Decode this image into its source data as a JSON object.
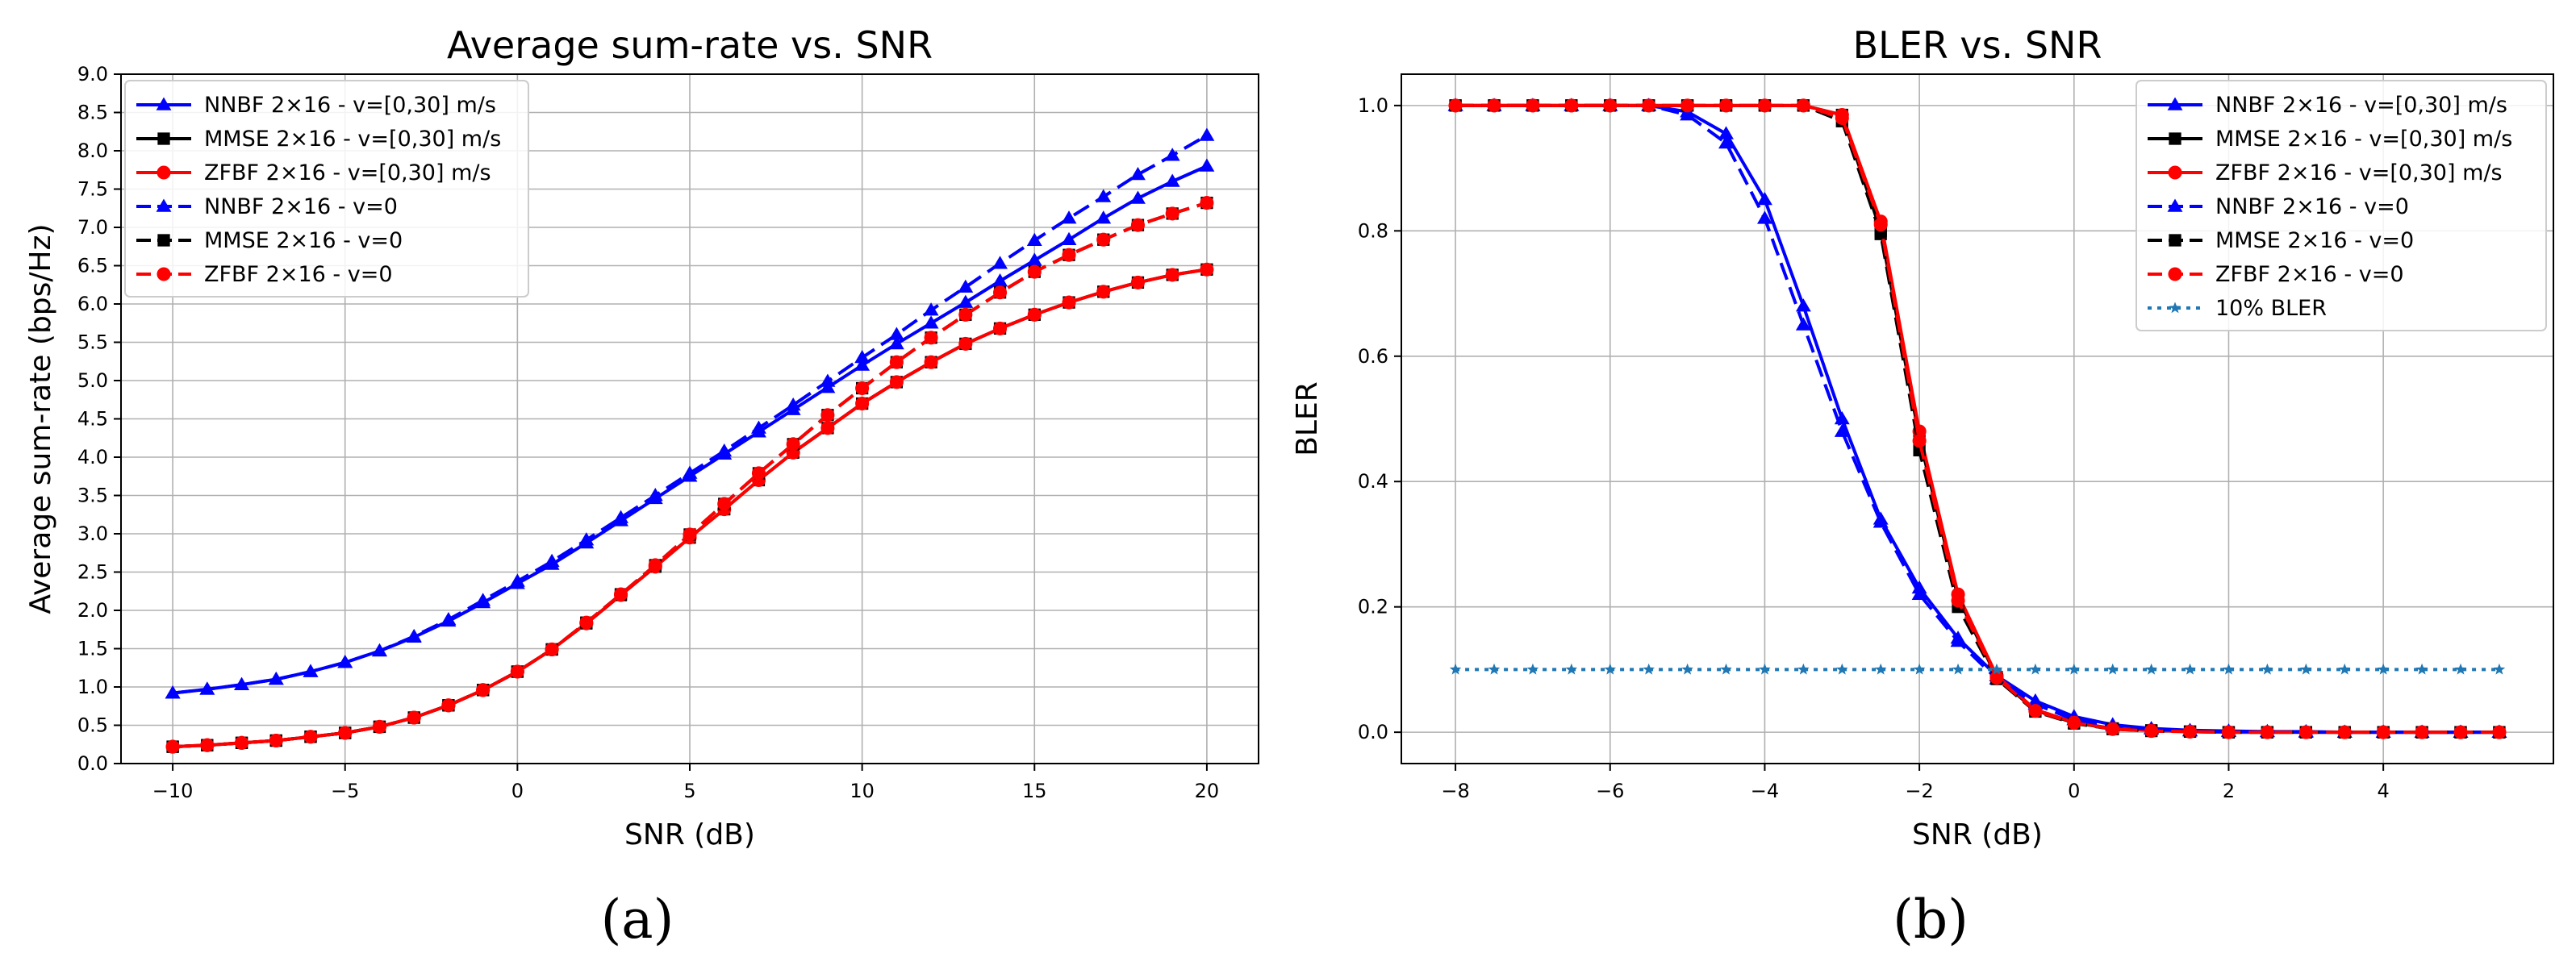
{
  "chart_data": [
    {
      "type": "line",
      "title": "Average sum-rate vs. SNR",
      "xlabel": "SNR (dB)",
      "ylabel": "Average sum-rate (bps/Hz)",
      "xlim": [
        -11.5,
        21.5
      ],
      "ylim": [
        0,
        9
      ],
      "xticks": [
        -10,
        -5,
        0,
        5,
        10,
        15,
        20
      ],
      "xtick_labels": [
        "−10",
        "−5",
        "0",
        "5",
        "10",
        "15",
        "20"
      ],
      "yticks": [
        0,
        0.5,
        1,
        1.5,
        2,
        2.5,
        3,
        3.5,
        4,
        4.5,
        5,
        5.5,
        6,
        6.5,
        7,
        7.5,
        8,
        8.5,
        9
      ],
      "ytick_labels": [
        "0.0",
        "0.5",
        "1.0",
        "1.5",
        "2.0",
        "2.5",
        "3.0",
        "3.5",
        "4.0",
        "4.5",
        "5.0",
        "5.5",
        "6.0",
        "6.5",
        "7.0",
        "7.5",
        "8.0",
        "8.5",
        "9.0"
      ],
      "grid": true,
      "legend_position": "upper-left",
      "panel_label": "(a)",
      "x": [
        -10,
        -9,
        -8,
        -7,
        -6,
        -5,
        -4,
        -3,
        -2,
        -1,
        0,
        1,
        2,
        3,
        4,
        5,
        6,
        7,
        8,
        9,
        10,
        11,
        12,
        13,
        14,
        15,
        16,
        17,
        18,
        19,
        20
      ],
      "series": [
        {
          "name": "NNBF 2×16 -  v=[0,30] m/s",
          "color": "#0000ff",
          "linestyle": "solid",
          "marker": "triangle",
          "values": [
            0.92,
            0.97,
            1.03,
            1.1,
            1.2,
            1.32,
            1.47,
            1.65,
            1.86,
            2.1,
            2.35,
            2.6,
            2.88,
            3.17,
            3.46,
            3.75,
            4.04,
            4.33,
            4.62,
            4.91,
            5.2,
            5.48,
            5.75,
            6.02,
            6.3,
            6.57,
            6.84,
            7.12,
            7.38,
            7.6,
            7.8
          ]
        },
        {
          "name": "MMSE 2×16 -  v=[0,30] m/s",
          "color": "#000000",
          "linestyle": "solid",
          "marker": "square",
          "values": [
            0.22,
            0.24,
            0.27,
            0.3,
            0.35,
            0.4,
            0.48,
            0.6,
            0.76,
            0.96,
            1.2,
            1.49,
            1.83,
            2.2,
            2.57,
            2.95,
            3.32,
            3.7,
            4.06,
            4.38,
            4.7,
            4.98,
            5.24,
            5.48,
            5.68,
            5.86,
            6.02,
            6.16,
            6.28,
            6.38,
            6.45
          ]
        },
        {
          "name": "ZFBF 2×16 -  v=[0,30] m/s",
          "color": "#ff0000",
          "linestyle": "solid",
          "marker": "circle",
          "values": [
            0.22,
            0.24,
            0.27,
            0.3,
            0.35,
            0.4,
            0.48,
            0.6,
            0.76,
            0.96,
            1.2,
            1.49,
            1.83,
            2.2,
            2.57,
            2.95,
            3.32,
            3.7,
            4.06,
            4.38,
            4.7,
            4.98,
            5.24,
            5.48,
            5.68,
            5.86,
            6.02,
            6.16,
            6.28,
            6.38,
            6.45
          ]
        },
        {
          "name": "NNBF 2×16 - v=0",
          "color": "#0000ff",
          "linestyle": "dashed",
          "marker": "triangle",
          "values": [
            0.92,
            0.97,
            1.03,
            1.1,
            1.2,
            1.32,
            1.47,
            1.66,
            1.88,
            2.13,
            2.38,
            2.64,
            2.92,
            3.21,
            3.5,
            3.79,
            4.08,
            4.38,
            4.68,
            4.99,
            5.3,
            5.6,
            5.92,
            6.22,
            6.53,
            6.83,
            7.12,
            7.4,
            7.69,
            7.94,
            8.2
          ]
        },
        {
          "name": "MMSE 2×16 - v=0",
          "color": "#000000",
          "linestyle": "dashed",
          "marker": "square",
          "values": [
            0.22,
            0.24,
            0.27,
            0.3,
            0.35,
            0.4,
            0.48,
            0.6,
            0.76,
            0.96,
            1.2,
            1.49,
            1.84,
            2.21,
            2.59,
            2.99,
            3.39,
            3.79,
            4.17,
            4.55,
            4.9,
            5.24,
            5.56,
            5.86,
            6.15,
            6.42,
            6.64,
            6.84,
            7.03,
            7.18,
            7.32
          ]
        },
        {
          "name": "ZFBF 2×16 - v=0",
          "color": "#ff0000",
          "linestyle": "dashed",
          "marker": "circle",
          "values": [
            0.22,
            0.24,
            0.27,
            0.3,
            0.35,
            0.4,
            0.48,
            0.6,
            0.76,
            0.96,
            1.2,
            1.49,
            1.84,
            2.21,
            2.59,
            2.99,
            3.39,
            3.79,
            4.17,
            4.55,
            4.9,
            5.24,
            5.56,
            5.86,
            6.15,
            6.42,
            6.64,
            6.84,
            7.03,
            7.18,
            7.32
          ]
        }
      ]
    },
    {
      "type": "line",
      "title": "BLER vs. SNR",
      "xlabel": "SNR (dB)",
      "ylabel": "BLER",
      "xlim": [
        -8.7,
        6.2
      ],
      "ylim": [
        -0.05,
        1.05
      ],
      "xticks": [
        -8,
        -6,
        -4,
        -2,
        0,
        2,
        4
      ],
      "xtick_labels": [
        "−8",
        "−6",
        "−4",
        "−2",
        "0",
        "2",
        "4"
      ],
      "yticks": [
        0,
        0.2,
        0.4,
        0.6,
        0.8,
        1.0
      ],
      "ytick_labels": [
        "0.0",
        "0.2",
        "0.4",
        "0.6",
        "0.8",
        "1.0"
      ],
      "grid": true,
      "legend_position": "upper-right",
      "panel_label": "(b)",
      "x": [
        -8,
        -7.5,
        -7,
        -6.5,
        -6,
        -5.5,
        -5,
        -4.5,
        -4,
        -3.5,
        -3,
        -2.5,
        -2,
        -1.5,
        -1,
        -0.5,
        0,
        0.5,
        1,
        1.5,
        2,
        2.5,
        3,
        3.5,
        4,
        4.5,
        5,
        5.5
      ],
      "series": [
        {
          "name": "NNBF 2×16 - v=[0,30] m/s",
          "color": "#0000ff",
          "linestyle": "solid",
          "marker": "triangle",
          "values": [
            1.0,
            1.0,
            1.0,
            1.0,
            1.0,
            1.0,
            0.99,
            0.955,
            0.85,
            0.68,
            0.5,
            0.34,
            0.23,
            0.15,
            0.09,
            0.05,
            0.025,
            0.012,
            0.006,
            0.003,
            0.002,
            0.001,
            0.001,
            0,
            0,
            0,
            0,
            0
          ]
        },
        {
          "name": "MMSE 2×16 - v=[0,30] m/s",
          "color": "#000000",
          "linestyle": "solid",
          "marker": "square",
          "values": [
            1.0,
            1.0,
            1.0,
            1.0,
            1.0,
            1.0,
            1.0,
            1.0,
            1.0,
            1.0,
            0.985,
            0.8,
            0.47,
            0.215,
            0.088,
            0.035,
            0.015,
            0.006,
            0.003,
            0.001,
            0,
            0,
            0,
            0,
            0,
            0,
            0,
            0
          ]
        },
        {
          "name": "ZFBF 2×16 - v=[0,30] m/s",
          "color": "#ff0000",
          "linestyle": "solid",
          "marker": "circle",
          "values": [
            1.0,
            1.0,
            1.0,
            1.0,
            1.0,
            1.0,
            1.0,
            1.0,
            1.0,
            1.0,
            0.985,
            0.815,
            0.48,
            0.22,
            0.09,
            0.036,
            0.016,
            0.006,
            0.003,
            0.001,
            0,
            0,
            0,
            0,
            0,
            0,
            0,
            0
          ]
        },
        {
          "name": "NNBF 2×16 - v=0",
          "color": "#0000ff",
          "linestyle": "dashed",
          "marker": "triangle",
          "values": [
            1.0,
            1.0,
            1.0,
            1.0,
            1.0,
            1.0,
            0.985,
            0.94,
            0.82,
            0.65,
            0.48,
            0.335,
            0.22,
            0.145,
            0.085,
            0.045,
            0.02,
            0.01,
            0.005,
            0.002,
            0.001,
            0.001,
            0,
            0,
            0,
            0,
            0,
            0
          ]
        },
        {
          "name": "MMSE 2×16 - v=0",
          "color": "#000000",
          "linestyle": "dashed",
          "marker": "square",
          "values": [
            1.0,
            1.0,
            1.0,
            1.0,
            1.0,
            1.0,
            1.0,
            1.0,
            1.0,
            1.0,
            0.975,
            0.795,
            0.45,
            0.2,
            0.085,
            0.033,
            0.014,
            0.005,
            0.002,
            0.001,
            0,
            0,
            0,
            0,
            0,
            0,
            0,
            0
          ]
        },
        {
          "name": "ZFBF 2×16 - v=0",
          "color": "#ff0000",
          "linestyle": "dashed",
          "marker": "circle",
          "values": [
            1.0,
            1.0,
            1.0,
            1.0,
            1.0,
            1.0,
            1.0,
            1.0,
            1.0,
            1.0,
            0.98,
            0.81,
            0.465,
            0.21,
            0.087,
            0.034,
            0.015,
            0.005,
            0.002,
            0.001,
            0,
            0,
            0,
            0,
            0,
            0,
            0,
            0
          ]
        },
        {
          "name": " 10% BLER",
          "color": "#1f77b4",
          "linestyle": "dotted",
          "marker": "star",
          "values": [
            0.1,
            0.1,
            0.1,
            0.1,
            0.1,
            0.1,
            0.1,
            0.1,
            0.1,
            0.1,
            0.1,
            0.1,
            0.1,
            0.1,
            0.1,
            0.1,
            0.1,
            0.1,
            0.1,
            0.1,
            0.1,
            0.1,
            0.1,
            0.1,
            0.1,
            0.1,
            0.1,
            0.1
          ]
        }
      ]
    }
  ]
}
